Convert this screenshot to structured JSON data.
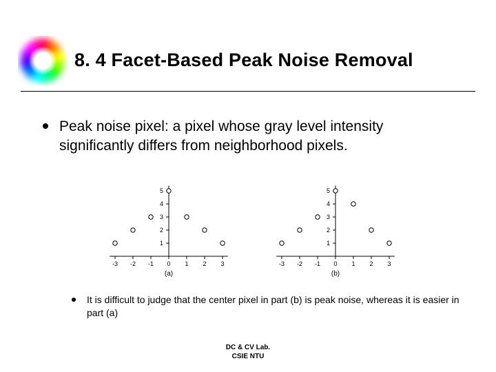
{
  "title": "8. 4 Facet-Based Peak Noise Removal",
  "main_bullet": "Peak noise pixel: a pixel whose gray level intensity significantly differs from neighborhood pixels.",
  "sub_bullet": "It is difficult to judge that the center pixel in part (b) is peak noise, whereas it is easier in part (a)",
  "footer_line1": "DC & CV Lab.",
  "footer_line2": "CSIE NTU",
  "logo": {
    "colors": [
      "#ff0000",
      "#ff7f00",
      "#ffff00",
      "#7fff00",
      "#00ff00",
      "#00ff7f",
      "#00ffff",
      "#007fff",
      "#0000ff",
      "#7f00ff",
      "#ff00ff",
      "#ff007f"
    ],
    "center_color": "#ffffff"
  },
  "charts": {
    "axis_color": "#000000",
    "marker_stroke": "#000000",
    "marker_fill": "#ffffff",
    "marker_radius": 3.2,
    "tick_labels_y": [
      "1",
      "2",
      "3",
      "4",
      "5"
    ],
    "tick_labels_x": [
      "-3",
      "-2",
      "-1",
      "0",
      "1",
      "2",
      "3"
    ],
    "label_fontsize": 9,
    "panel_label_fontsize": 10,
    "panels": [
      {
        "label": "(a)",
        "points": [
          {
            "x": -3,
            "y": 1
          },
          {
            "x": -2,
            "y": 2
          },
          {
            "x": -1,
            "y": 3
          },
          {
            "x": 0,
            "y": 5
          },
          {
            "x": 1,
            "y": 3
          },
          {
            "x": 2,
            "y": 2
          },
          {
            "x": 3,
            "y": 1
          }
        ]
      },
      {
        "label": "(b)",
        "points": [
          {
            "x": -3,
            "y": 1
          },
          {
            "x": -2,
            "y": 2
          },
          {
            "x": -1,
            "y": 3
          },
          {
            "x": 0,
            "y": 5
          },
          {
            "x": 1,
            "y": 4
          },
          {
            "x": 2,
            "y": 2
          },
          {
            "x": 3,
            "y": 1
          }
        ]
      }
    ]
  }
}
